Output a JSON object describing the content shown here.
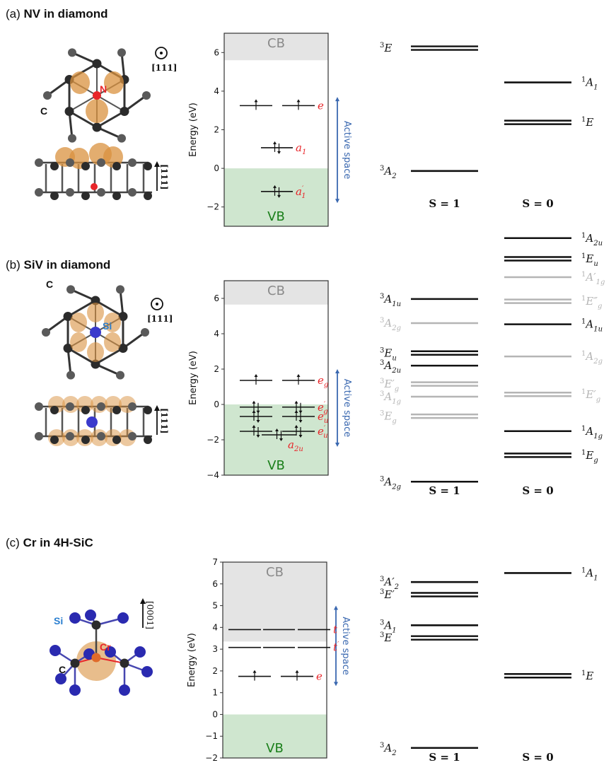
{
  "colors": {
    "cb_fill": "#e4e4e4",
    "vb_fill": "#cfe6cf",
    "level": "#111111",
    "orbital_label": "#e8262a",
    "active_space": "#3a68b0",
    "cb_text": "#8a8a8a",
    "vb_text": "#1a7f1a",
    "grey_state": "#b5b5b5",
    "orbital_lobe": "#d9913f",
    "carbon": "#2b2b2b",
    "nitrogen": "#e8262a",
    "silicon_dopant": "#3a3acc",
    "si_atom": "#2a2ab0",
    "chromium": "#e06a2a"
  },
  "panels": [
    {
      "id": "a",
      "tag": "(a)",
      "title": "NV in diamond",
      "structure": {
        "atom_labels": [
          {
            "text": "C",
            "color": "#111111"
          },
          {
            "text": "N",
            "color": "#e8262a"
          }
        ],
        "direction_top": "[111]",
        "direction_side": "[111]",
        "top_symbol": "out-of-plane-dot"
      },
      "chart_data": {
        "type": "energy-level",
        "ylabel": "Energy (eV)",
        "ylim": [
          -3,
          7
        ],
        "yticks": [
          -2,
          0,
          2,
          4,
          6
        ],
        "ytick_labels": [
          "−2",
          "0",
          "2",
          "4",
          "6"
        ],
        "cb_min": 5.6,
        "vb_max": 0,
        "cb_label": "CB",
        "vb_label": "VB",
        "active_space": {
          "label": "Active space",
          "from": -1.8,
          "to": 3.7
        },
        "orbitals": [
          {
            "label": "e",
            "sub": "",
            "prime": false,
            "energy": 3.25,
            "degeneracy": 2,
            "occupation": [
              "up",
              "up"
            ]
          },
          {
            "label": "a",
            "sub": "1",
            "prime": false,
            "energy": 1.07,
            "degeneracy": 1,
            "occupation": [
              "updown"
            ]
          },
          {
            "label": "a",
            "sub": "1",
            "prime": true,
            "energy": -1.2,
            "degeneracy": 1,
            "occupation": [
              "updown"
            ]
          }
        ]
      },
      "states": {
        "columns": [
          "S = 1",
          "S = 0"
        ],
        "range": [
          0,
          10
        ],
        "triplets": [
          {
            "base": "E",
            "sub": "",
            "prime": "",
            "value": 9.6,
            "degenerate": true,
            "grey": false
          },
          {
            "base": "A",
            "sub": "2",
            "prime": "",
            "value": 1.0,
            "degenerate": false,
            "grey": false
          }
        ],
        "singlets": [
          {
            "base": "A",
            "sub": "1",
            "prime": "",
            "value": 7.2,
            "degenerate": false,
            "grey": false
          },
          {
            "base": "E",
            "sub": "",
            "prime": "",
            "value": 4.4,
            "degenerate": true,
            "grey": false
          }
        ]
      }
    },
    {
      "id": "b",
      "tag": "(b)",
      "title": "SiV in diamond",
      "structure": {
        "atom_labels": [
          {
            "text": "C",
            "color": "#111111"
          },
          {
            "text": "Si",
            "color": "#2a7fd0"
          }
        ],
        "direction_top": "[111]",
        "direction_side": "[111]",
        "top_symbol": "out-of-plane-dot"
      },
      "chart_data": {
        "type": "energy-level",
        "ylabel": "Energy (eV)",
        "ylim": [
          -4,
          7
        ],
        "yticks": [
          -4,
          -2,
          0,
          2,
          4,
          6
        ],
        "ytick_labels": [
          "−4",
          "−2",
          "0",
          "2",
          "4",
          "6"
        ],
        "cb_min": 5.65,
        "vb_max": 0,
        "cb_label": "CB",
        "vb_label": "VB",
        "active_space": {
          "label": "Active space",
          "from": -2.4,
          "to": 2.0
        },
        "orbitals": [
          {
            "label": "e",
            "sub": "g",
            "prime": false,
            "energy": 1.36,
            "degeneracy": 2,
            "occupation": [
              "up",
              "up"
            ]
          },
          {
            "label": "e",
            "sub": "g",
            "prime": true,
            "energy": -0.15,
            "degeneracy": 2,
            "occupation": [
              "updown",
              "updown"
            ]
          },
          {
            "label": "e",
            "sub": "u",
            "prime": false,
            "energy": -0.68,
            "degeneracy": 2,
            "occupation": [
              "updown",
              "updown"
            ]
          },
          {
            "label": "e",
            "sub": "u",
            "prime": true,
            "energy": -1.52,
            "degeneracy": 2,
            "occupation": [
              "updown",
              "updown"
            ]
          },
          {
            "label": "a",
            "sub": "2u",
            "prime": false,
            "energy": -1.72,
            "degeneracy": 1,
            "occupation": [
              "updown"
            ]
          }
        ]
      },
      "states": {
        "columns": [
          "S = 1",
          "S = 0"
        ],
        "range": [
          0,
          10
        ],
        "triplets": [
          {
            "base": "A",
            "sub": "1u",
            "prime": "",
            "value": 7.45,
            "degenerate": false,
            "grey": false
          },
          {
            "base": "A",
            "sub": "2g",
            "prime": "",
            "value": 6.4,
            "degenerate": false,
            "grey": true
          },
          {
            "base": "E",
            "sub": "u",
            "prime": "",
            "value": 5.1,
            "degenerate": true,
            "grey": false
          },
          {
            "base": "A",
            "sub": "2u",
            "prime": "",
            "value": 4.55,
            "degenerate": false,
            "grey": false
          },
          {
            "base": "E",
            "sub": "g",
            "prime": "′",
            "value": 3.75,
            "degenerate": true,
            "grey": true
          },
          {
            "base": "A",
            "sub": "1g",
            "prime": "",
            "value": 3.2,
            "degenerate": false,
            "grey": true
          },
          {
            "base": "E",
            "sub": "g",
            "prime": "",
            "value": 2.35,
            "degenerate": true,
            "grey": true
          },
          {
            "base": "A",
            "sub": "2g",
            "prime": "",
            "value": -0.5,
            "degenerate": false,
            "grey": false
          }
        ],
        "singlets": [
          {
            "base": "A",
            "sub": "2u",
            "prime": "",
            "value": 10.1,
            "degenerate": false,
            "grey": false
          },
          {
            "base": "E",
            "sub": "u",
            "prime": "",
            "value": 9.2,
            "degenerate": true,
            "grey": false
          },
          {
            "base": "A",
            "sub": "1g",
            "prime": "′",
            "value": 8.4,
            "degenerate": false,
            "grey": true
          },
          {
            "base": "E",
            "sub": "g",
            "prime": "″",
            "value": 7.35,
            "degenerate": true,
            "grey": true
          },
          {
            "base": "A",
            "sub": "1u",
            "prime": "",
            "value": 6.35,
            "degenerate": false,
            "grey": false
          },
          {
            "base": "A",
            "sub": "2g",
            "prime": "",
            "value": 4.95,
            "degenerate": false,
            "grey": true
          },
          {
            "base": "E",
            "sub": "g",
            "prime": "′",
            "value": 3.3,
            "degenerate": true,
            "grey": true
          },
          {
            "base": "A",
            "sub": "1g",
            "prime": "",
            "value": 1.7,
            "degenerate": false,
            "grey": false
          },
          {
            "base": "E",
            "sub": "g",
            "prime": "",
            "value": 0.65,
            "degenerate": true,
            "grey": false
          }
        ]
      }
    },
    {
      "id": "c",
      "tag": "(c)",
      "title": "Cr in 4H-SiC",
      "structure": {
        "atom_labels": [
          {
            "text": "Si",
            "color": "#2a7fd0"
          },
          {
            "text": "Cr",
            "color": "#e8262a"
          },
          {
            "text": "C",
            "color": "#111111"
          }
        ],
        "direction_side": "[0001]"
      },
      "chart_data": {
        "type": "energy-level",
        "ylabel": "Energy (eV)",
        "ylim": [
          -2,
          7
        ],
        "yticks": [
          -2,
          -1,
          0,
          1,
          2,
          3,
          4,
          5,
          6,
          7
        ],
        "ytick_labels": [
          "−2",
          "−1",
          "0",
          "1",
          "2",
          "3",
          "4",
          "5",
          "6",
          "7"
        ],
        "cb_min": 3.35,
        "vb_max": 0,
        "cb_label": "CB",
        "vb_label": "VB",
        "active_space": {
          "label": "Active space",
          "from": 1.3,
          "to": 5.0
        },
        "orbitals": [
          {
            "label": "t",
            "sub": "",
            "prime": false,
            "energy": 3.9,
            "degeneracy": 3,
            "occupation": [
              "",
              "",
              ""
            ]
          },
          {
            "label": "t",
            "sub": "",
            "prime": true,
            "energy": 3.08,
            "degeneracy": 3,
            "occupation": [
              "",
              "",
              ""
            ]
          },
          {
            "label": "e",
            "sub": "",
            "prime": false,
            "energy": 1.75,
            "degeneracy": 2,
            "occupation": [
              "up",
              "up"
            ]
          }
        ]
      },
      "states": {
        "columns": [
          "S = 1",
          "S = 0"
        ],
        "range": [
          0,
          10
        ],
        "triplets": [
          {
            "base": "A",
            "sub": "2",
            "prime": "′",
            "value": 8.7,
            "degenerate": false,
            "grey": false
          },
          {
            "base": "E",
            "sub": "",
            "prime": "′",
            "value": 8.0,
            "degenerate": true,
            "grey": false
          },
          {
            "base": "A",
            "sub": "1",
            "prime": "",
            "value": 6.3,
            "degenerate": false,
            "grey": false
          },
          {
            "base": "E",
            "sub": "",
            "prime": "",
            "value": 5.6,
            "degenerate": true,
            "grey": false
          },
          {
            "base": "A",
            "sub": "2",
            "prime": "",
            "value": -0.5,
            "degenerate": false,
            "grey": false
          }
        ],
        "singlets": [
          {
            "base": "A",
            "sub": "1",
            "prime": "",
            "value": 9.2,
            "degenerate": false,
            "grey": false
          },
          {
            "base": "E",
            "sub": "",
            "prime": "",
            "value": 3.5,
            "degenerate": true,
            "grey": false
          }
        ]
      }
    }
  ]
}
